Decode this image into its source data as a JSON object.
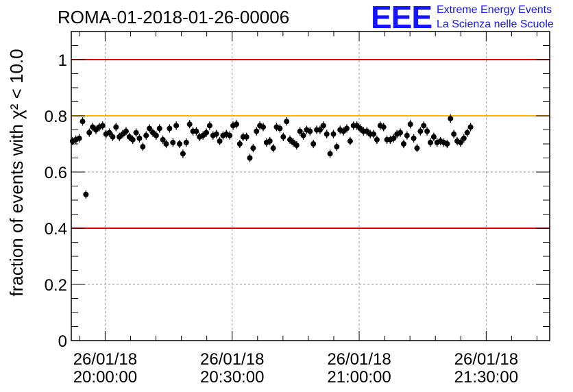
{
  "chart_data": {
    "type": "scatter",
    "title": "ROMA-01-2018-01-26-00006",
    "ylabel": "fraction of events with χ² < 10.0",
    "ylim": [
      0,
      1.1
    ],
    "y_ticks": [
      {
        "value": 0,
        "label": "0"
      },
      {
        "value": 0.2,
        "label": "0.2"
      },
      {
        "value": 0.4,
        "label": "0.4"
      },
      {
        "value": 0.6,
        "label": "0.6"
      },
      {
        "value": 0.8,
        "label": "0.8"
      },
      {
        "value": 1.0,
        "label": "1"
      }
    ],
    "x_unit": "minutes after 26/01/18 19:47",
    "xlim": [
      0,
      113
    ],
    "x_ticks": [
      {
        "value": 8,
        "date": "26/01/18",
        "time": "20:00:00"
      },
      {
        "value": 38,
        "date": "26/01/18",
        "time": "20:30:00"
      },
      {
        "value": 68,
        "date": "26/01/18",
        "time": "21:00:00"
      },
      {
        "value": 98,
        "date": "26/01/18",
        "time": "21:30:00"
      }
    ],
    "grid": true,
    "reference_lines": [
      {
        "value": 1.0,
        "color": "#e00000"
      },
      {
        "value": 0.8,
        "color": "#ffb300"
      },
      {
        "value": 0.4,
        "color": "#e00000"
      }
    ],
    "point_color": "#000000",
    "error": 0.015,
    "x_start": 0.3,
    "x_step": 0.79,
    "values": [
      0.71,
      0.715,
      0.72,
      0.78,
      0.52,
      0.74,
      0.76,
      0.75,
      0.76,
      0.765,
      0.735,
      0.74,
      0.725,
      0.76,
      0.725,
      0.735,
      0.745,
      0.725,
      0.715,
      0.74,
      0.72,
      0.69,
      0.73,
      0.755,
      0.74,
      0.73,
      0.755,
      0.715,
      0.7,
      0.755,
      0.705,
      0.765,
      0.7,
      0.665,
      0.705,
      0.77,
      0.745,
      0.745,
      0.725,
      0.73,
      0.74,
      0.765,
      0.73,
      0.735,
      0.71,
      0.73,
      0.735,
      0.73,
      0.765,
      0.77,
      0.7,
      0.725,
      0.725,
      0.65,
      0.685,
      0.745,
      0.765,
      0.76,
      0.705,
      0.71,
      0.685,
      0.76,
      0.755,
      0.725,
      0.78,
      0.715,
      0.705,
      0.695,
      0.745,
      0.73,
      0.75,
      0.745,
      0.7,
      0.75,
      0.75,
      0.765,
      0.735,
      0.665,
      0.735,
      0.69,
      0.75,
      0.745,
      0.755,
      0.71,
      0.765,
      0.765,
      0.755,
      0.745,
      0.745,
      0.735,
      0.735,
      0.715,
      0.765,
      0.76,
      0.715,
      0.715,
      0.72,
      0.735,
      0.74,
      0.7,
      0.73,
      0.77,
      0.72,
      0.685,
      0.745,
      0.765,
      0.745,
      0.705,
      0.725,
      0.705,
      0.71,
      0.705,
      0.7,
      0.79,
      0.735,
      0.71,
      0.705,
      0.72,
      0.74,
      0.76
    ]
  },
  "logo": {
    "mark": "EEE",
    "line1": "Extreme Energy Events",
    "line2": "La Scienza nelle Scuole",
    "color": "#1414ff"
  }
}
